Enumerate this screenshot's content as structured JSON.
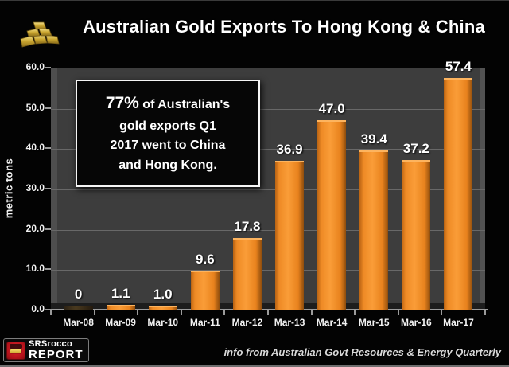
{
  "header": {
    "title": "Australian Gold Exports To Hong Kong & China"
  },
  "chart_data": {
    "type": "bar",
    "title": "Australian Gold Exports To Hong Kong & China",
    "xlabel": "",
    "ylabel": "metric tons",
    "categories": [
      "Mar-08",
      "Mar-09",
      "Mar-10",
      "Mar-11",
      "Mar-12",
      "Mar-13",
      "Mar-14",
      "Mar-15",
      "Mar-16",
      "Mar-17"
    ],
    "values": [
      0,
      1.1,
      1.0,
      9.6,
      17.8,
      36.9,
      47.0,
      39.4,
      37.2,
      57.4
    ],
    "value_labels": [
      "0",
      "1.1",
      "1.0",
      "9.6",
      "17.8",
      "36.9",
      "47.0",
      "39.4",
      "37.2",
      "57.4"
    ],
    "ylim": [
      0,
      60
    ],
    "yticks": [
      0,
      10,
      20,
      30,
      40,
      50,
      60
    ],
    "ytick_labels": [
      "0.0",
      "10.0",
      "20.0",
      "30.0",
      "40.0",
      "50.0",
      "60.0"
    ],
    "grid": true,
    "legend": "none",
    "bar_color": "#F6921E",
    "plot_bg": "#3D3D3D",
    "page_bg": "#000000"
  },
  "annotation": {
    "lead": "77%",
    "lines": [
      "of Australian's",
      "gold exports Q1",
      "2017 went to China",
      "and Hong Kong."
    ]
  },
  "footer": {
    "source_note": "info from Australian Govt Resources & Energy Quarterly",
    "logo": {
      "line1": "SRSrocco",
      "line2": "REPORT"
    }
  }
}
